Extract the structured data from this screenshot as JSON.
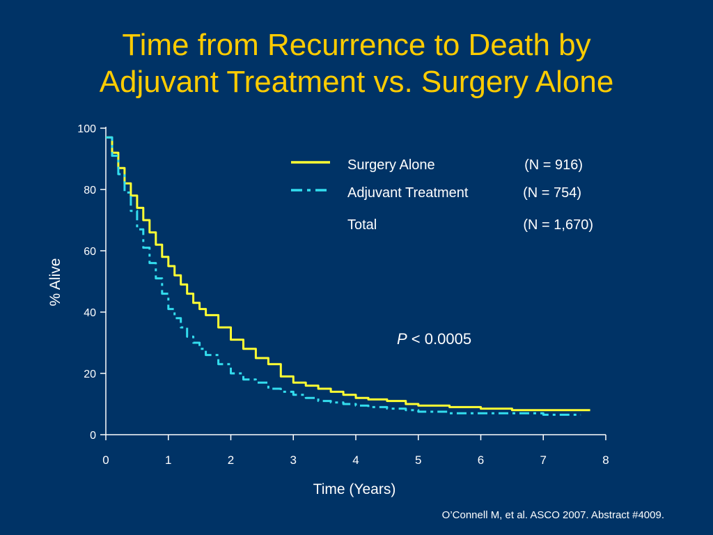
{
  "title": {
    "line1": "Time from Recurrence to Death by",
    "line2": "Adjuvant Treatment vs. Surgery Alone"
  },
  "citation": "O’Connell M, et al. ASCO 2007. Abstract #4009.",
  "colors": {
    "background": "#003366",
    "title": "#ffcc00",
    "surgery_alone": "#ffff33",
    "adjuvant": "#33ddee",
    "text": "#ffffff"
  },
  "chart_data": {
    "type": "line",
    "xlabel": "Time (Years)",
    "ylabel": "% Alive",
    "xlim": [
      0,
      8
    ],
    "ylim": [
      0,
      100
    ],
    "x_ticks": [
      0,
      1,
      2,
      3,
      4,
      5,
      6,
      7,
      8
    ],
    "y_ticks": [
      0,
      20,
      40,
      60,
      80,
      100
    ],
    "grid": false,
    "legend_position": "top-right",
    "legend": [
      {
        "label": "Surgery Alone",
        "n": "(N = 916)",
        "style": "solid"
      },
      {
        "label": "Adjuvant Treatment",
        "n": "(N = 754)",
        "style": "dashed"
      },
      {
        "label": "Total",
        "n": "(N = 1,670)",
        "style": "none"
      }
    ],
    "annotation": {
      "italic": "P",
      "text": " < 0.0005"
    },
    "series": [
      {
        "name": "Surgery Alone",
        "style": "solid",
        "x": [
          0,
          0.1,
          0.2,
          0.3,
          0.4,
          0.5,
          0.6,
          0.7,
          0.8,
          0.9,
          1.0,
          1.1,
          1.2,
          1.3,
          1.4,
          1.5,
          1.6,
          1.8,
          2.0,
          2.2,
          2.4,
          2.6,
          2.8,
          3.0,
          3.2,
          3.4,
          3.6,
          3.8,
          4.0,
          4.2,
          4.5,
          4.8,
          5.0,
          5.5,
          6.0,
          6.5,
          7.0,
          7.5,
          7.75
        ],
        "y": [
          97,
          92,
          87,
          82,
          78,
          74,
          70,
          66,
          62,
          58,
          55,
          52,
          49,
          46,
          43,
          41,
          39,
          35,
          31,
          28,
          25,
          23,
          19,
          17,
          16,
          15,
          14,
          13,
          12,
          11.5,
          11,
          10,
          9.5,
          9,
          8.5,
          8,
          8,
          8,
          8
        ]
      },
      {
        "name": "Adjuvant Treatment",
        "style": "dashed",
        "x": [
          0,
          0.1,
          0.2,
          0.3,
          0.4,
          0.5,
          0.6,
          0.7,
          0.8,
          0.9,
          1.0,
          1.1,
          1.2,
          1.3,
          1.4,
          1.5,
          1.6,
          1.8,
          2.0,
          2.2,
          2.4,
          2.6,
          2.8,
          3.0,
          3.2,
          3.4,
          3.6,
          3.8,
          4.0,
          4.2,
          4.5,
          4.8,
          5.0,
          5.5,
          6.0,
          6.5,
          7.0,
          7.5,
          7.6
        ],
        "y": [
          97,
          91,
          85,
          79,
          73,
          67,
          61,
          56,
          51,
          46,
          41,
          38,
          35,
          32,
          30,
          28,
          26,
          23,
          20,
          18,
          17,
          15,
          14,
          13,
          12,
          11,
          10.5,
          10,
          9.5,
          9,
          8.5,
          8,
          7.5,
          7,
          7,
          7,
          6.5,
          6.5,
          6.5
        ]
      }
    ]
  }
}
